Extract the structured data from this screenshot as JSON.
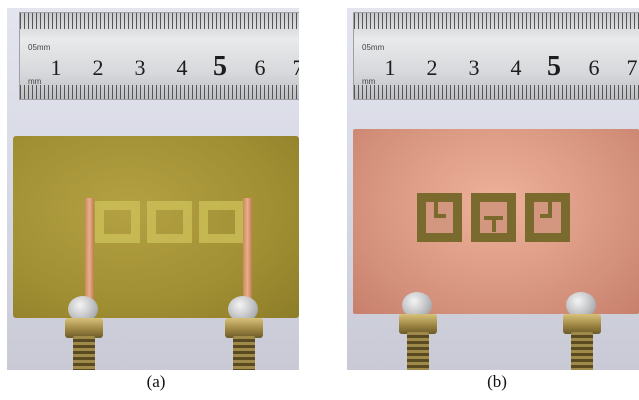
{
  "captions": {
    "a": "(a)",
    "b": "(b)"
  },
  "ruler": {
    "unit_top": "05mm",
    "unit_bottom": "mm",
    "numbers": [
      "1",
      "2",
      "3",
      "4",
      "5",
      "6",
      "7"
    ]
  },
  "colors": {
    "fr4_board": "#a18f33",
    "copper_board": "#d99882",
    "feedline": "#e8b08a",
    "etched_slot": "#7b6a2e"
  }
}
